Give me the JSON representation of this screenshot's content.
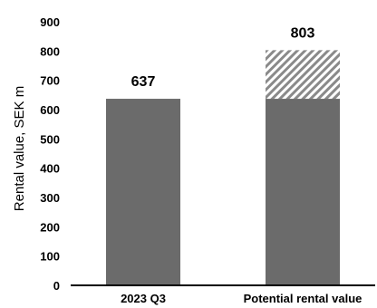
{
  "chart_data": {
    "type": "bar",
    "title": "",
    "xlabel": "",
    "ylabel": "Rental value, SEK m",
    "ylim": [
      0,
      900
    ],
    "yticks": [
      0,
      100,
      200,
      300,
      400,
      500,
      600,
      700,
      800,
      900
    ],
    "grid": false,
    "categories": [
      "2023 Q3",
      "Potential rental value"
    ],
    "series": [
      {
        "values": [
          637,
          637
        ],
        "color": "#6b6b6b",
        "pattern": "solid"
      },
      {
        "values": [
          0,
          166
        ],
        "color": "#8a8a8a",
        "pattern": "diagonal-hatch"
      }
    ],
    "data_labels": [
      "637",
      "803"
    ]
  }
}
